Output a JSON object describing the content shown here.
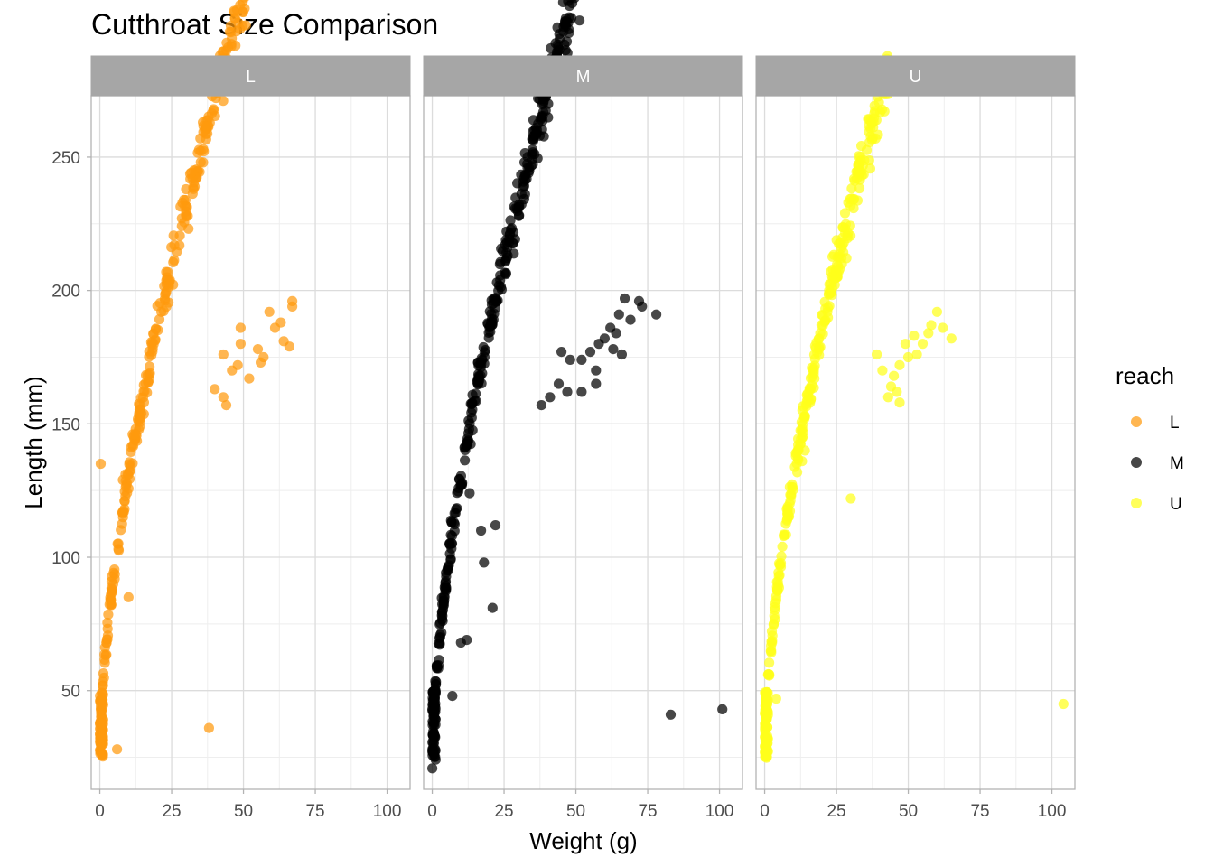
{
  "chart_data": {
    "type": "scatter",
    "title": "Cutthroat Size Comparison",
    "xlabel": "Weight (g)",
    "ylabel": "Length (mm)",
    "xlim": [
      -3,
      108
    ],
    "ylim": [
      13,
      273
    ],
    "x_ticks": [
      0,
      25,
      50,
      75,
      100
    ],
    "y_ticks": [
      50,
      100,
      150,
      200,
      250
    ],
    "grid": true,
    "facet_variable": "reach",
    "legend": {
      "title": "reach",
      "placement": "right",
      "entries": [
        {
          "label": "L",
          "color": "#FF9A0E"
        },
        {
          "label": "M",
          "color": "#000000"
        },
        {
          "label": "U",
          "color": "#FFFF1A"
        }
      ]
    },
    "series": [
      {
        "name": "L",
        "color": "#FF9A0E",
        "curve": {
          "a": 26,
          "b": 25,
          "c": 0.62,
          "xmax": 58,
          "spread": 3.5,
          "n": 340
        },
        "outliers": [
          [
            36,
            253
          ],
          [
            0.3,
            135
          ],
          [
            8,
            129
          ],
          [
            6,
            28
          ],
          [
            38,
            36
          ],
          [
            67,
            196
          ],
          [
            67,
            194
          ],
          [
            59,
            192
          ],
          [
            63,
            188
          ],
          [
            49,
            186
          ],
          [
            61,
            186
          ],
          [
            64,
            181
          ],
          [
            66,
            179
          ],
          [
            49,
            180
          ],
          [
            43,
            176
          ],
          [
            55,
            178
          ],
          [
            57,
            175
          ],
          [
            48,
            172
          ],
          [
            56,
            173
          ],
          [
            46,
            170
          ],
          [
            52,
            167
          ],
          [
            40,
            163
          ],
          [
            43,
            160
          ],
          [
            44,
            157
          ],
          [
            10,
            85
          ]
        ]
      },
      {
        "name": "M",
        "color": "#000000",
        "curve": {
          "a": 23,
          "b": 25.5,
          "c": 0.62,
          "xmax": 55,
          "spread": 3.5,
          "n": 380
        },
        "outliers": [
          [
            83,
            41
          ],
          [
            101,
            43
          ],
          [
            21,
            81
          ],
          [
            7,
            48
          ],
          [
            10,
            68
          ],
          [
            12,
            69
          ],
          [
            18,
            98
          ],
          [
            13,
            124
          ],
          [
            17,
            110
          ],
          [
            22,
            112
          ],
          [
            67,
            197
          ],
          [
            72,
            196
          ],
          [
            73,
            194
          ],
          [
            78,
            191
          ],
          [
            65,
            191
          ],
          [
            69,
            189
          ],
          [
            62,
            186
          ],
          [
            64,
            184
          ],
          [
            60,
            182
          ],
          [
            58,
            180
          ],
          [
            55,
            177
          ],
          [
            63,
            178
          ],
          [
            52,
            174
          ],
          [
            57,
            170
          ],
          [
            45,
            177
          ],
          [
            48,
            174
          ],
          [
            66,
            176
          ],
          [
            44,
            165
          ],
          [
            41,
            160
          ],
          [
            47,
            162
          ],
          [
            52,
            162
          ],
          [
            57,
            165
          ],
          [
            38,
            157
          ]
        ]
      },
      {
        "name": "U",
        "color": "#FFFF1A",
        "curve": {
          "a": 25,
          "b": 25,
          "c": 0.62,
          "xmax": 44,
          "spread": 3.2,
          "n": 300
        },
        "outliers": [
          [
            104,
            45
          ],
          [
            4,
            47
          ],
          [
            30,
            122
          ],
          [
            14,
            140
          ],
          [
            13,
            136
          ],
          [
            60,
            192
          ],
          [
            57,
            184
          ],
          [
            62,
            186
          ],
          [
            65,
            182
          ],
          [
            58,
            187
          ],
          [
            55,
            180
          ],
          [
            53,
            176
          ],
          [
            50,
            175
          ],
          [
            47,
            172
          ],
          [
            45,
            168
          ],
          [
            49,
            180
          ],
          [
            44,
            164
          ],
          [
            43,
            160
          ],
          [
            47,
            158
          ],
          [
            46,
            162
          ],
          [
            39,
            176
          ],
          [
            52,
            183
          ],
          [
            41,
            170
          ]
        ]
      }
    ]
  }
}
